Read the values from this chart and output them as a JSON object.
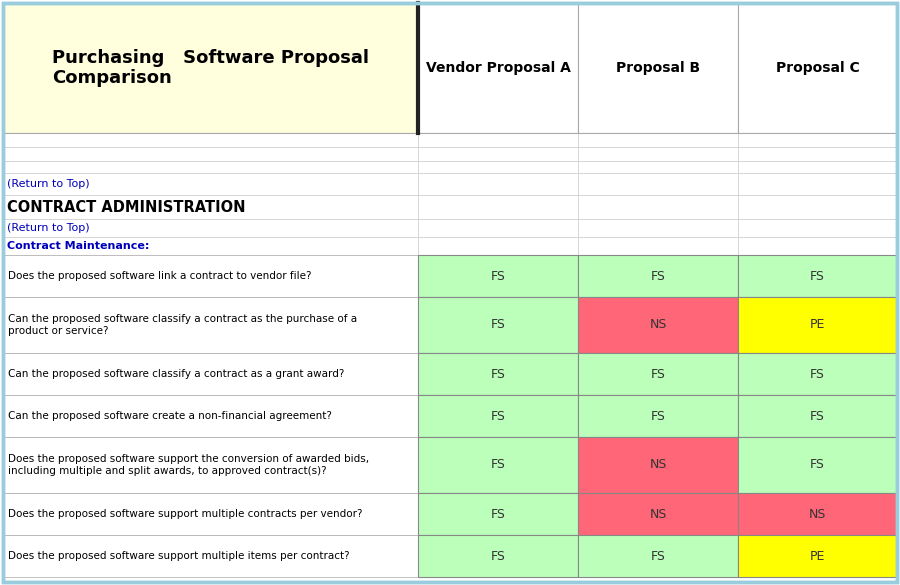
{
  "header_title": "Purchasing   Software Proposal\nComparison",
  "col_headers": [
    "Vendor Proposal A",
    "Proposal B",
    "Proposal C"
  ],
  "data_rows": [
    {
      "question": "Does the proposed software link a contract to vendor file?",
      "values": [
        "FS",
        "FS",
        "FS"
      ],
      "colors": [
        "#bbffbb",
        "#bbffbb",
        "#bbffbb"
      ],
      "multiline": false
    },
    {
      "question": "Can the proposed software classify a contract as the purchase of a\nproduct or service?",
      "values": [
        "FS",
        "NS",
        "PE"
      ],
      "colors": [
        "#bbffbb",
        "#ff6677",
        "#ffff00"
      ],
      "multiline": true
    },
    {
      "question": "Can the proposed software classify a contract as a grant award?",
      "values": [
        "FS",
        "FS",
        "FS"
      ],
      "colors": [
        "#bbffbb",
        "#bbffbb",
        "#bbffbb"
      ],
      "multiline": false
    },
    {
      "question": "Can the proposed software create a non-financial agreement?",
      "values": [
        "FS",
        "FS",
        "FS"
      ],
      "colors": [
        "#bbffbb",
        "#bbffbb",
        "#bbffbb"
      ],
      "multiline": false
    },
    {
      "question": "Does the proposed software support the conversion of awarded bids,\nincluding multiple and split awards, to approved contract(s)?",
      "values": [
        "FS",
        "NS",
        "FS"
      ],
      "colors": [
        "#bbffbb",
        "#ff6677",
        "#bbffbb"
      ],
      "multiline": true
    },
    {
      "question": "Does the proposed software support multiple contracts per vendor?",
      "values": [
        "FS",
        "NS",
        "NS"
      ],
      "colors": [
        "#bbffbb",
        "#ff6677",
        "#ff6677"
      ],
      "multiline": false
    },
    {
      "question": "Does the proposed software support multiple items per contract?",
      "values": [
        "FS",
        "FS",
        "PE"
      ],
      "colors": [
        "#bbffbb",
        "#bbffbb",
        "#ffff00"
      ],
      "multiline": false
    }
  ],
  "bg_color": "#ffffff",
  "header_bg": "#ffffdd",
  "col_header_bg": "#ffffff",
  "outer_border": "#99ccdd",
  "link_color": "#0000bb",
  "subsection_color": "#0000bb",
  "fig_width": 9.0,
  "fig_height": 5.85
}
